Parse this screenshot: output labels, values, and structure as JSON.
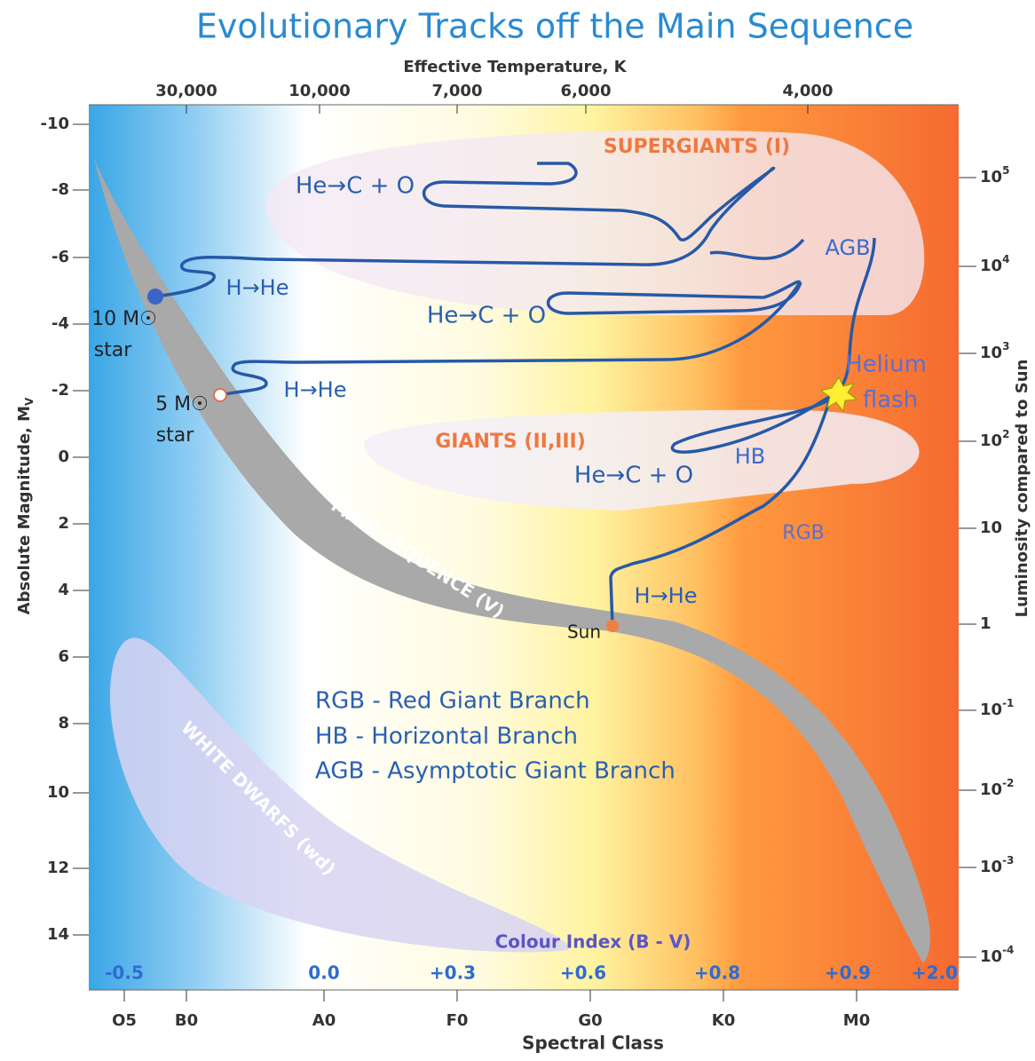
{
  "header": {
    "title": "Evolutionary Tracks off the Main Sequence"
  },
  "top_axis": {
    "label": "Effective Temperature, K",
    "ticks": [
      "30,000",
      "10,000",
      "7,000",
      "6,000",
      "4,000"
    ]
  },
  "left_axis": {
    "label": "Absolute Magnitude, M",
    "label_sub": "V",
    "ticks": [
      "-10",
      "-8",
      "-6",
      "-4",
      "-2",
      "0",
      "2",
      "4",
      "6",
      "8",
      "10",
      "12",
      "14"
    ]
  },
  "right_axis": {
    "label": "Luminosity compared to Sun",
    "ticks": [
      {
        "base": "10",
        "exp": "5"
      },
      {
        "base": "10",
        "exp": "4"
      },
      {
        "base": "10",
        "exp": "3"
      },
      {
        "base": "10",
        "exp": "2"
      },
      {
        "base": "10",
        "exp": ""
      },
      {
        "base": "1",
        "exp": ""
      },
      {
        "base": "10",
        "exp": "-1"
      },
      {
        "base": "10",
        "exp": "-2"
      },
      {
        "base": "10",
        "exp": "-3"
      },
      {
        "base": "10",
        "exp": "-4"
      }
    ]
  },
  "bottom_axis": {
    "label": "Spectral Class",
    "ticks": [
      "O5",
      "B0",
      "A0",
      "F0",
      "G0",
      "K0",
      "M0"
    ]
  },
  "colour_index": {
    "label": "Colour Index (B - V)",
    "ticks": [
      "-0.5",
      "0.0",
      "+0.3",
      "+0.6",
      "+0.8",
      "+0.9",
      "+2.0"
    ]
  },
  "regions": {
    "supergiants": "SUPERGIANTS (I)",
    "giants": "GIANTS (II,III)",
    "main_sequence": "MAIN SEQUENCE (V)",
    "white_dwarfs": "WHITE DWARFS (wd)"
  },
  "annotations": {
    "he_c_o_1": "He→C + O",
    "h_he_1": "H→He",
    "he_c_o_2": "He→C + O",
    "h_he_2": "H→He",
    "star10_mass": "10 M☉",
    "star10_word": "star",
    "star5_mass": "5 M☉",
    "star5_word": "star",
    "agb": "AGB",
    "helium": "Helium",
    "flash": "flash",
    "hb": "HB",
    "he_c_o_3": "He→C + O",
    "rgb": "RGB",
    "h_he_3": "H→He",
    "sun": "Sun"
  },
  "legend": [
    "RGB - Red Giant Branch",
    "HB    - Horizontal Branch",
    "AGB - Asymptotic Giant Branch"
  ]
}
